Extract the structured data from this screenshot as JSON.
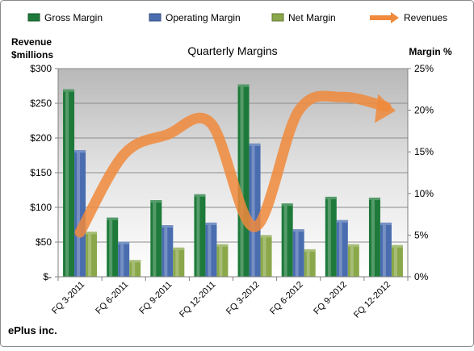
{
  "company": "ePlus inc.",
  "chart_data": {
    "type": "bar",
    "title": "Quarterly Margins",
    "categories": [
      "FQ 3-2011",
      "FQ 6-2011",
      "FQ 9-2011",
      "FQ 12-2011",
      "FQ 3-2012",
      "FQ 6-2012",
      "FQ 9-2012",
      "FQ 12-2012"
    ],
    "series": [
      {
        "name": "Gross Margin",
        "type": "bar",
        "axis": "right",
        "color": "#1e7a3a",
        "values": [
          22.5,
          7.1,
          9.2,
          9.9,
          23.1,
          8.8,
          9.6,
          9.5
        ]
      },
      {
        "name": "Operating Margin",
        "type": "bar",
        "axis": "right",
        "color": "#4a6db0",
        "values": [
          15.2,
          4.2,
          6.2,
          6.5,
          16.0,
          5.7,
          6.8,
          6.5
        ]
      },
      {
        "name": "Net Margin",
        "type": "bar",
        "axis": "right",
        "color": "#8aa84a",
        "values": [
          5.4,
          2.0,
          3.5,
          3.9,
          5.0,
          3.3,
          3.9,
          3.8
        ]
      },
      {
        "name": "Revenues",
        "type": "line",
        "axis": "left",
        "color": "#f08a3c",
        "values": [
          64,
          176,
          205,
          221,
          72,
          239,
          259,
          245
        ]
      }
    ],
    "left_axis": {
      "label_line1": "Revenue",
      "label_line2": "$millions",
      "min": 0,
      "max": 300,
      "ticks": [
        0,
        50,
        100,
        150,
        200,
        250,
        300
      ],
      "tick_labels": [
        "$-",
        "$50",
        "$100",
        "$150",
        "$200",
        "$250",
        "$300"
      ]
    },
    "right_axis": {
      "label": "Margin %",
      "min": 0,
      "max": 25,
      "ticks": [
        0,
        5,
        10,
        15,
        20,
        25
      ],
      "tick_labels": [
        "0%",
        "5%",
        "10%",
        "15%",
        "20%",
        "25%"
      ]
    },
    "grid": true,
    "legend_position": "top"
  }
}
